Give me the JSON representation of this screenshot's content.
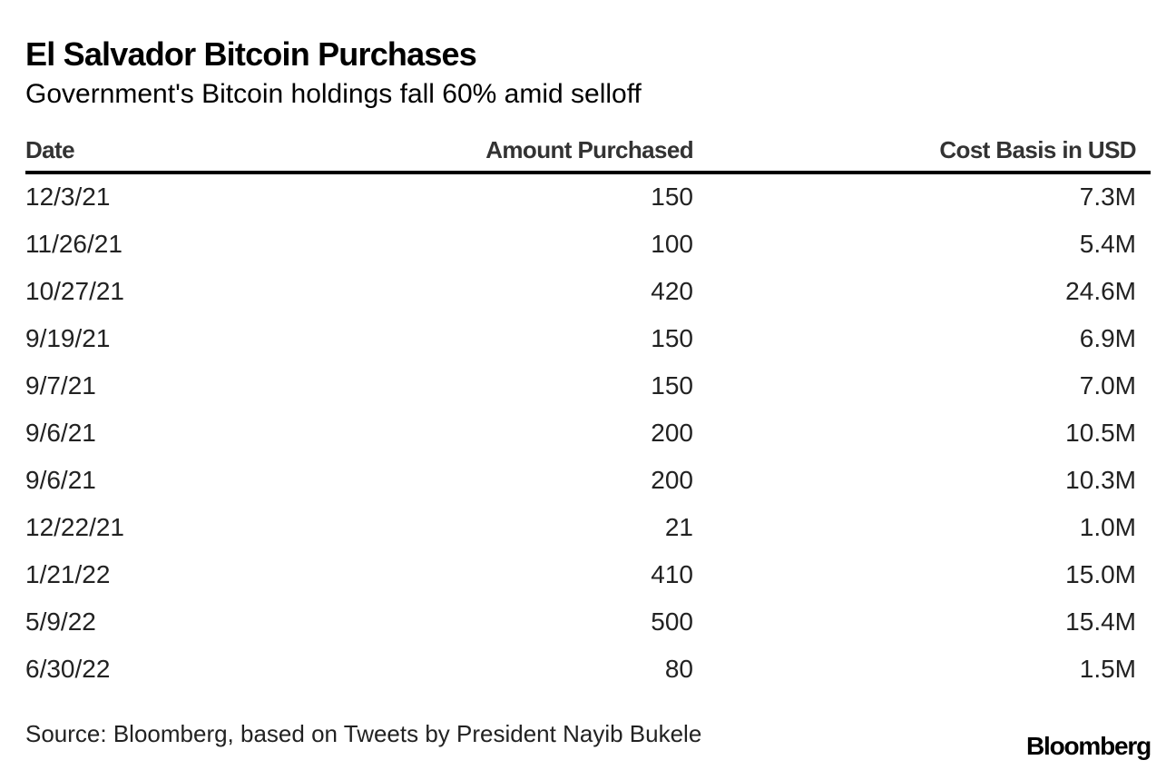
{
  "chart_data": {
    "type": "table",
    "title": "El Salvador Bitcoin Purchases",
    "subtitle": "Government's Bitcoin holdings fall 60% amid selloff",
    "columns": [
      "Date",
      "Amount Purchased",
      "Cost Basis in USD"
    ],
    "rows": [
      [
        "12/3/21",
        "150",
        "7.3M"
      ],
      [
        "11/26/21",
        "100",
        "5.4M"
      ],
      [
        "10/27/21",
        "420",
        "24.6M"
      ],
      [
        "9/19/21",
        "150",
        "6.9M"
      ],
      [
        "9/7/21",
        "150",
        "7.0M"
      ],
      [
        "9/6/21",
        "200",
        "10.5M"
      ],
      [
        "9/6/21",
        "200",
        "10.3M"
      ],
      [
        "12/22/21",
        "21",
        "1.0M"
      ],
      [
        "1/21/22",
        "410",
        "15.0M"
      ],
      [
        "5/9/22",
        "500",
        "15.4M"
      ],
      [
        "6/30/22",
        "80",
        "1.5M"
      ]
    ],
    "source": "Source: Bloomberg, based on Tweets by President Nayib Bukele",
    "brand": "Bloomberg"
  }
}
